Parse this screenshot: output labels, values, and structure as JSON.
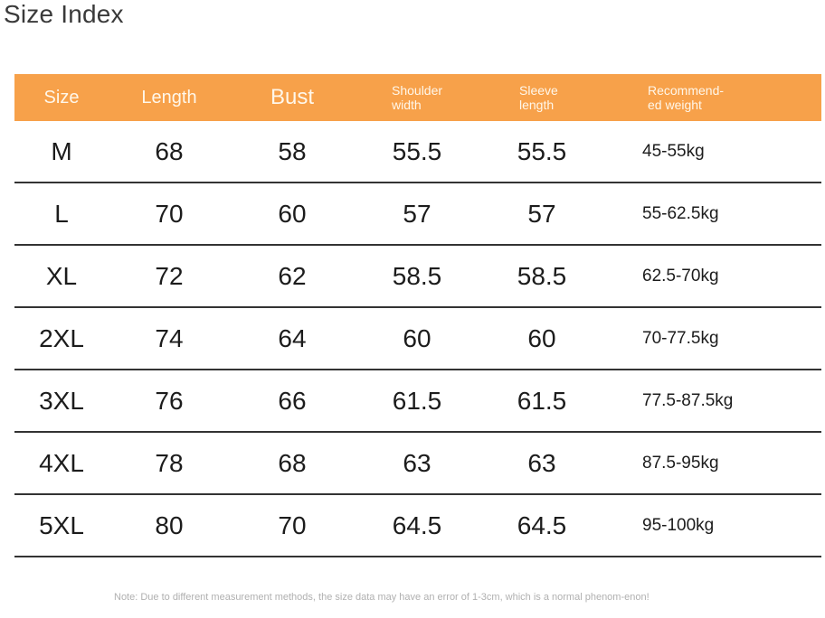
{
  "title": "Size Index",
  "headers": [
    "Size",
    "Length",
    "Bust",
    "Shoulder width",
    "Sleeve length",
    "Recommend-ed weight"
  ],
  "header_lines": {
    "shoulder": [
      "Shoulder",
      "width"
    ],
    "sleeve": [
      "Sleeve",
      "length"
    ],
    "weight": [
      "Recommend-",
      "ed weight"
    ]
  },
  "rows": [
    {
      "size": "M",
      "length": "68",
      "bust": "58",
      "shoulder": "55.5",
      "sleeve": "55.5",
      "weight": "45-55kg"
    },
    {
      "size": "L",
      "length": "70",
      "bust": "60",
      "shoulder": "57",
      "sleeve": "57",
      "weight": "55-62.5kg"
    },
    {
      "size": "XL",
      "length": "72",
      "bust": "62",
      "shoulder": "58.5",
      "sleeve": "58.5",
      "weight": "62.5-70kg"
    },
    {
      "size": "2XL",
      "length": "74",
      "bust": "64",
      "shoulder": "60",
      "sleeve": "60",
      "weight": "70-77.5kg"
    },
    {
      "size": "3XL",
      "length": "76",
      "bust": "66",
      "shoulder": "61.5",
      "sleeve": "61.5",
      "weight": "77.5-87.5kg"
    },
    {
      "size": "4XL",
      "length": "78",
      "bust": "68",
      "shoulder": "63",
      "sleeve": "63",
      "weight": "87.5-95kg"
    },
    {
      "size": "5XL",
      "length": "80",
      "bust": "70",
      "shoulder": "64.5",
      "sleeve": "64.5",
      "weight": "95-100kg"
    }
  ],
  "note": "Note: Due to different measurement methods, the size data may have an error of 1-3cm, which is a normal phenom-enon!",
  "colors": {
    "header_bg": "#f7a14a",
    "header_text": "#fff7ea",
    "divider": "#333333"
  }
}
